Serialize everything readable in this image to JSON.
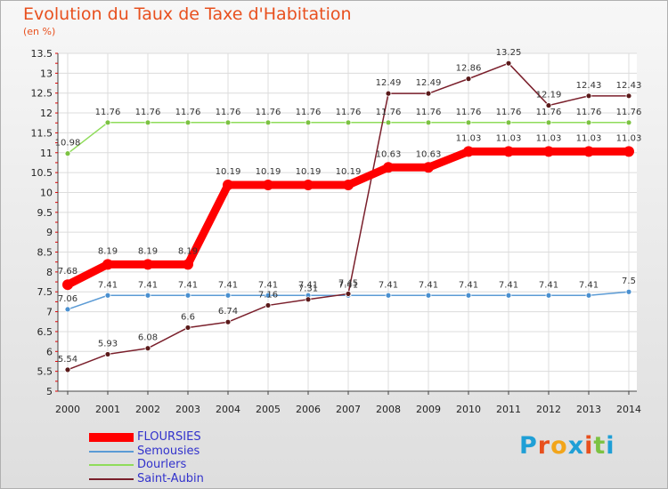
{
  "title": "Evolution du Taux de Taxe d'Habitation",
  "subtitle": "(en %)",
  "logo": [
    "P",
    "r",
    "o",
    "x",
    "i",
    "t",
    "i"
  ],
  "logo_colors": [
    "#1f9fd6",
    "#e8501e",
    "#f2a51a",
    "#1f9fd6",
    "#e8501e",
    "#7cc242",
    "#1f9fd6"
  ],
  "chart_data": {
    "type": "line",
    "title": "Evolution du Taux de Taxe d'Habitation",
    "ylabel": "(en %)",
    "xlabel": "",
    "categories": [
      "2000",
      "2001",
      "2002",
      "2003",
      "2004",
      "2005",
      "2006",
      "2007",
      "2008",
      "2009",
      "2010",
      "2011",
      "2012",
      "2013",
      "2014"
    ],
    "ylim": [
      5,
      13.5
    ],
    "yticks": [
      "5",
      "5.5",
      "6",
      "6.5",
      "7",
      "7.5",
      "8",
      "8.5",
      "9",
      "9.5",
      "10",
      "10.5",
      "11",
      "11.5",
      "12",
      "12.5",
      "13",
      "13.5"
    ],
    "series": [
      {
        "name": "FLOURSIES",
        "color": "#ff0000",
        "marker": "#ff0000",
        "values": [
          7.68,
          8.19,
          8.19,
          8.19,
          10.19,
          10.19,
          10.19,
          10.19,
          10.63,
          10.63,
          11.03,
          11.03,
          11.03,
          11.03,
          11.03
        ],
        "labels": [
          "7.68",
          "8.19",
          "8.19",
          "8.19",
          "10.19",
          "10.19",
          "10.19",
          "10.19",
          "10.63",
          "10.63",
          "11.03",
          "11.03",
          "11.03",
          "11.03",
          "11.03"
        ]
      },
      {
        "name": "Semousies",
        "color": "#5b9bd5",
        "marker": "#4a90d0",
        "values": [
          7.06,
          7.41,
          7.41,
          7.41,
          7.41,
          7.41,
          7.41,
          7.41,
          7.41,
          7.41,
          7.41,
          7.41,
          7.41,
          7.41,
          7.5
        ],
        "labels": [
          "7.06",
          "7.41",
          "7.41",
          "7.41",
          "7.41",
          "7.41",
          "7.41",
          "7.41",
          "7.41",
          "7.41",
          "7.41",
          "7.41",
          "7.41",
          "7.41",
          "7.5"
        ]
      },
      {
        "name": "Dourlers",
        "color": "#8fdc5a",
        "marker": "#7cc242",
        "values": [
          10.98,
          11.76,
          11.76,
          11.76,
          11.76,
          11.76,
          11.76,
          11.76,
          11.76,
          11.76,
          11.76,
          11.76,
          11.76,
          11.76,
          11.76
        ],
        "labels": [
          "10.98",
          "11.76",
          "11.76",
          "11.76",
          "11.76",
          "11.76",
          "11.76",
          "11.76",
          "11.76",
          "11.76",
          "11.76",
          "11.76",
          "11.76",
          "11.76",
          "11.76"
        ]
      },
      {
        "name": "Saint-Aubin",
        "color": "#7a1f2b",
        "marker": "#5a1a1a",
        "values": [
          5.54,
          5.93,
          6.08,
          6.6,
          6.74,
          7.16,
          7.31,
          7.45,
          12.49,
          12.49,
          12.86,
          13.25,
          12.19,
          12.43,
          12.43
        ],
        "labels": [
          "5.54",
          "5.93",
          "6.08",
          "6.6",
          "6.74",
          "7.16",
          "7.31",
          "7.45",
          "12.49",
          "12.49",
          "12.86",
          "13.25",
          "12.19",
          "12.43",
          "12.43"
        ]
      }
    ]
  }
}
